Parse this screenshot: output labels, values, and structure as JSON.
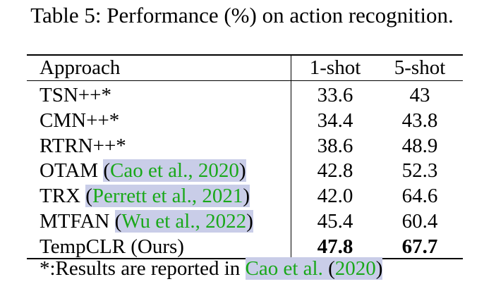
{
  "caption": "Table 5: Performance (%) on action recognition.",
  "header": {
    "approach": "Approach",
    "one_shot": "1-shot",
    "five_shot": "5-shot"
  },
  "rows": [
    {
      "method": "TSN++*",
      "cite_text": "",
      "cite_year": "",
      "one_shot": "33.6",
      "five_shot": "43",
      "bold": false
    },
    {
      "method": "CMN++*",
      "cite_text": "",
      "cite_year": "",
      "one_shot": "34.4",
      "five_shot": "43.8",
      "bold": false
    },
    {
      "method": "RTRN++*",
      "cite_text": "",
      "cite_year": "",
      "one_shot": "38.6",
      "five_shot": "48.9",
      "bold": false
    },
    {
      "method": "OTAM",
      "cite_text": "Cao et al., ",
      "cite_year": "2020",
      "one_shot": "42.8",
      "five_shot": "52.3",
      "bold": false
    },
    {
      "method": "TRX",
      "cite_text": "Perrett et al., ",
      "cite_year": "2021",
      "one_shot": "42.0",
      "five_shot": "64.6",
      "bold": false
    },
    {
      "method": "MTFAN",
      "cite_text": "Wu et al., ",
      "cite_year": "2022",
      "one_shot": "45.4",
      "five_shot": "60.4",
      "bold": false
    },
    {
      "method": "TempCLR (Ours)",
      "cite_text": "",
      "cite_year": "",
      "one_shot": "47.8",
      "five_shot": "67.7",
      "bold": true
    }
  ],
  "footnote": {
    "prefix": "*:Results are reported in ",
    "cite_authors": "Cao et al.",
    "cite_year": "2020"
  },
  "colors": {
    "citation_text": "#1aa81a",
    "citation_highlight": "#c9cde8"
  }
}
